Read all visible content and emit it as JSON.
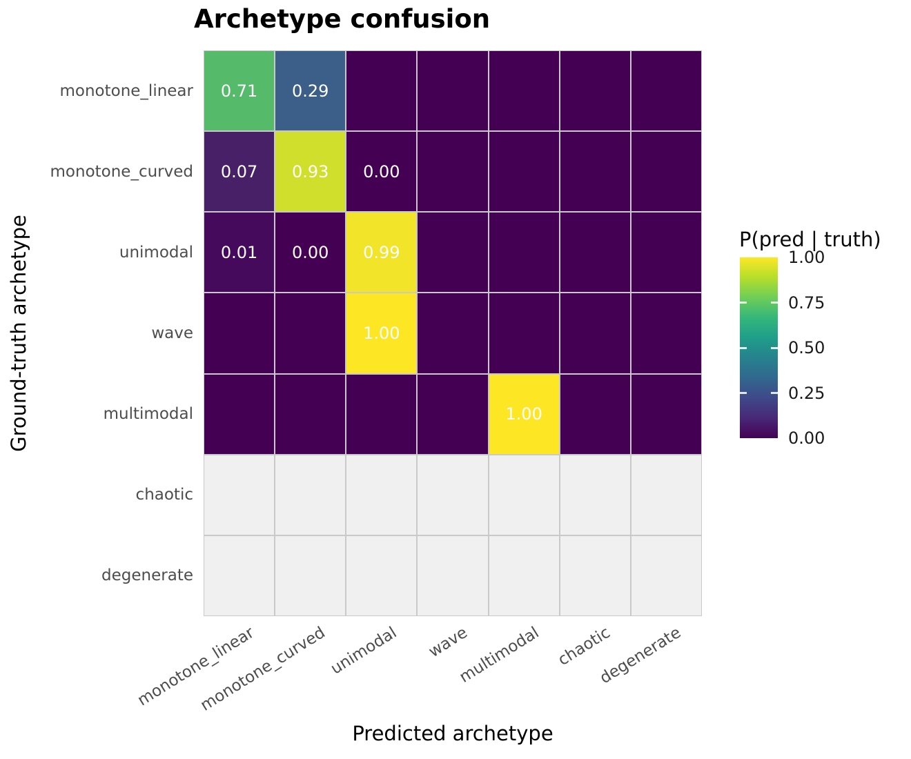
{
  "chart_data": {
    "type": "heatmap",
    "title": "Archetype confusion",
    "xlabel": "Predicted archetype",
    "ylabel": "Ground-truth archetype",
    "x_categories": [
      "monotone_linear",
      "monotone_curved",
      "unimodal",
      "wave",
      "multimodal",
      "chaotic",
      "degenerate"
    ],
    "y_categories": [
      "monotone_linear",
      "monotone_curved",
      "unimodal",
      "wave",
      "multimodal",
      "chaotic",
      "degenerate"
    ],
    "matrix": [
      [
        {
          "v": 0.71,
          "label": "0.71"
        },
        {
          "v": 0.29,
          "label": "0.29"
        },
        {
          "v": 0
        },
        {
          "v": 0
        },
        {
          "v": 0
        },
        {
          "v": 0
        },
        {
          "v": 0
        }
      ],
      [
        {
          "v": 0.07,
          "label": "0.07"
        },
        {
          "v": 0.93,
          "label": "0.93"
        },
        {
          "v": 0,
          "label": "0.00"
        },
        {
          "v": 0
        },
        {
          "v": 0
        },
        {
          "v": 0
        },
        {
          "v": 0
        }
      ],
      [
        {
          "v": 0.01,
          "label": "0.01"
        },
        {
          "v": 0,
          "label": "0.00"
        },
        {
          "v": 0.99,
          "label": "0.99"
        },
        {
          "v": 0
        },
        {
          "v": 0
        },
        {
          "v": 0
        },
        {
          "v": 0
        }
      ],
      [
        {
          "v": 0
        },
        {
          "v": 0
        },
        {
          "v": 1,
          "label": "1.00"
        },
        {
          "v": 0
        },
        {
          "v": 0
        },
        {
          "v": 0
        },
        {
          "v": 0
        }
      ],
      [
        {
          "v": 0
        },
        {
          "v": 0
        },
        {
          "v": 0
        },
        {
          "v": 0
        },
        {
          "v": 1,
          "label": "1.00"
        },
        {
          "v": 0
        },
        {
          "v": 0
        }
      ],
      [
        {
          "v": null
        },
        {
          "v": null
        },
        {
          "v": null
        },
        {
          "v": null
        },
        {
          "v": null
        },
        {
          "v": null
        },
        {
          "v": null
        }
      ],
      [
        {
          "v": null
        },
        {
          "v": null
        },
        {
          "v": null
        },
        {
          "v": null
        },
        {
          "v": null
        },
        {
          "v": null
        },
        {
          "v": null
        }
      ]
    ],
    "value_colors": {
      "0": "#440154",
      "0.01": "#450a5c",
      "0.07": "#472067",
      "0.29": "#3c5f8a",
      "0.71": "#55bb6a",
      "0.93": "#d0de2c",
      "0.99": "#f2e428",
      "1": "#fde725"
    },
    "na_color": "#f0f0f0",
    "grid_color": "#c9c9c9",
    "cell_label_color": "#ffffff",
    "legend": {
      "title": "P(pred | truth)",
      "ticks": [
        "1.00",
        "0.75",
        "0.50",
        "0.25",
        "0.00"
      ],
      "colormap": "viridis",
      "range": [
        0,
        1
      ],
      "position": "right"
    },
    "grid": true,
    "xlim_categorical": true
  }
}
